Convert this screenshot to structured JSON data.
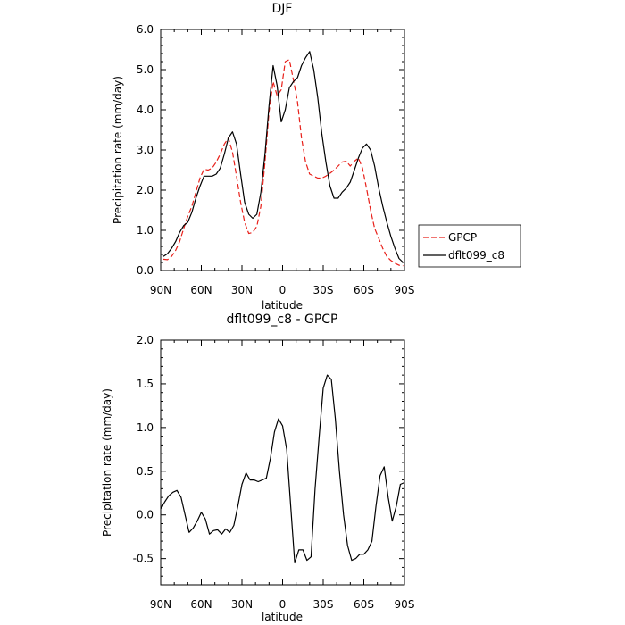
{
  "chart_data": [
    {
      "type": "line",
      "title": "DJF",
      "xlabel": "latitude",
      "ylabel": "Precipitation rate (mm/day)",
      "xlim": [
        90,
        -90
      ],
      "ylim": [
        0,
        6
      ],
      "xticks": [
        90,
        60,
        30,
        0,
        -30,
        -60,
        -90
      ],
      "xtick_labels": [
        "90N",
        "60N",
        "30N",
        "0",
        "30S",
        "60S",
        "90S"
      ],
      "yticks": [
        0,
        1,
        2,
        3,
        4,
        5,
        6
      ],
      "ytick_labels": [
        "0.0",
        "1.0",
        "2.0",
        "3.0",
        "4.0",
        "5.0",
        "6.0"
      ],
      "grid": false,
      "legend": "right",
      "series": [
        {
          "name": "GPCP",
          "color": "#e8201a",
          "style": "dashed",
          "x": [
            88,
            85,
            82,
            79,
            76,
            73,
            70,
            67,
            64,
            61,
            58,
            55,
            52,
            49,
            46,
            43,
            40,
            37,
            34,
            31,
            28,
            25,
            22,
            19,
            16,
            13,
            10,
            7,
            4,
            1,
            -2,
            -5,
            -8,
            -11,
            -14,
            -17,
            -20,
            -23,
            -26,
            -29,
            -32,
            -35,
            -38,
            -41,
            -44,
            -47,
            -50,
            -53,
            -56,
            -59,
            -62,
            -65,
            -68,
            -71,
            -74,
            -77,
            -80,
            -83,
            -86,
            -89
          ],
          "y": [
            0.28,
            0.27,
            0.35,
            0.5,
            0.72,
            1.05,
            1.35,
            1.6,
            1.95,
            2.3,
            2.52,
            2.5,
            2.55,
            2.7,
            2.9,
            3.15,
            3.3,
            2.95,
            2.35,
            1.7,
            1.2,
            0.92,
            0.95,
            1.1,
            1.6,
            2.7,
            3.95,
            4.7,
            4.35,
            4.5,
            5.2,
            5.25,
            4.75,
            4.2,
            3.3,
            2.7,
            2.4,
            2.35,
            2.3,
            2.3,
            2.35,
            2.42,
            2.5,
            2.6,
            2.7,
            2.72,
            2.6,
            2.72,
            2.8,
            2.55,
            2.05,
            1.5,
            1.05,
            0.8,
            0.55,
            0.35,
            0.25,
            0.18,
            0.13,
            0.12
          ]
        },
        {
          "name": "dflt099_c8",
          "color": "#000000",
          "style": "solid",
          "x": [
            88,
            85,
            82,
            79,
            76,
            73,
            70,
            67,
            64,
            61,
            58,
            55,
            52,
            49,
            46,
            43,
            40,
            37,
            34,
            31,
            28,
            25,
            22,
            19,
            16,
            13,
            10,
            7,
            4,
            1,
            -2,
            -5,
            -8,
            -11,
            -14,
            -17,
            -20,
            -23,
            -26,
            -29,
            -32,
            -35,
            -38,
            -41,
            -44,
            -47,
            -50,
            -53,
            -56,
            -59,
            -62,
            -65,
            -68,
            -71,
            -74,
            -77,
            -80,
            -83,
            -86,
            -89
          ],
          "y": [
            0.35,
            0.42,
            0.55,
            0.72,
            0.95,
            1.12,
            1.2,
            1.45,
            1.8,
            2.1,
            2.35,
            2.35,
            2.35,
            2.4,
            2.55,
            2.9,
            3.3,
            3.45,
            3.15,
            2.4,
            1.7,
            1.4,
            1.3,
            1.4,
            1.95,
            2.9,
            4.1,
            5.1,
            4.6,
            3.7,
            4.0,
            4.55,
            4.7,
            4.8,
            5.1,
            5.3,
            5.45,
            5.0,
            4.3,
            3.4,
            2.7,
            2.1,
            1.8,
            1.8,
            1.95,
            2.05,
            2.2,
            2.5,
            2.8,
            3.05,
            3.15,
            3.0,
            2.6,
            2.05,
            1.6,
            1.2,
            0.85,
            0.55,
            0.3,
            0.2
          ]
        }
      ]
    },
    {
      "type": "line",
      "title": "dflt099_c8 - GPCP",
      "xlabel": "latitude",
      "ylabel": "Precipitation rate (mm/day)",
      "xlim": [
        90,
        -90
      ],
      "ylim": [
        -0.8,
        2.0
      ],
      "xticks": [
        90,
        60,
        30,
        0,
        -30,
        -60,
        -90
      ],
      "xtick_labels": [
        "90N",
        "60N",
        "30N",
        "0",
        "30S",
        "60S",
        "90S"
      ],
      "yticks": [
        -0.5,
        0,
        0.5,
        1.0,
        1.5,
        2.0
      ],
      "ytick_labels": [
        "-0.5",
        "0.0",
        "0.5",
        "1.0",
        "1.5",
        "2.0"
      ],
      "grid": false,
      "series": [
        {
          "color": "#000000",
          "style": "solid",
          "x": [
            90,
            87,
            84,
            81,
            78,
            75,
            72,
            69,
            66,
            63,
            60,
            57,
            54,
            51,
            48,
            45,
            42,
            39,
            36,
            33,
            30,
            27,
            24,
            21,
            18,
            15,
            12,
            9,
            6,
            3,
            0,
            -3,
            -6,
            -9,
            -12,
            -15,
            -18,
            -21,
            -24,
            -27,
            -30,
            -33,
            -36,
            -39,
            -42,
            -45,
            -48,
            -51,
            -54,
            -57,
            -60,
            -63,
            -66,
            -69,
            -72,
            -75,
            -78,
            -81,
            -84,
            -87,
            -90
          ],
          "y": [
            0.07,
            0.15,
            0.22,
            0.26,
            0.28,
            0.2,
            0.0,
            -0.2,
            -0.15,
            -0.07,
            0.03,
            -0.05,
            -0.22,
            -0.18,
            -0.17,
            -0.22,
            -0.16,
            -0.2,
            -0.12,
            0.1,
            0.35,
            0.48,
            0.4,
            0.4,
            0.38,
            0.4,
            0.42,
            0.65,
            0.95,
            1.1,
            1.02,
            0.75,
            0.1,
            -0.55,
            -0.4,
            -0.4,
            -0.52,
            -0.48,
            0.3,
            0.9,
            1.45,
            1.6,
            1.55,
            1.1,
            0.5,
            0.0,
            -0.35,
            -0.52,
            -0.5,
            -0.45,
            -0.45,
            -0.4,
            -0.3,
            0.1,
            0.45,
            0.55,
            0.2,
            -0.07,
            0.1,
            0.35,
            0.37
          ]
        }
      ]
    }
  ]
}
